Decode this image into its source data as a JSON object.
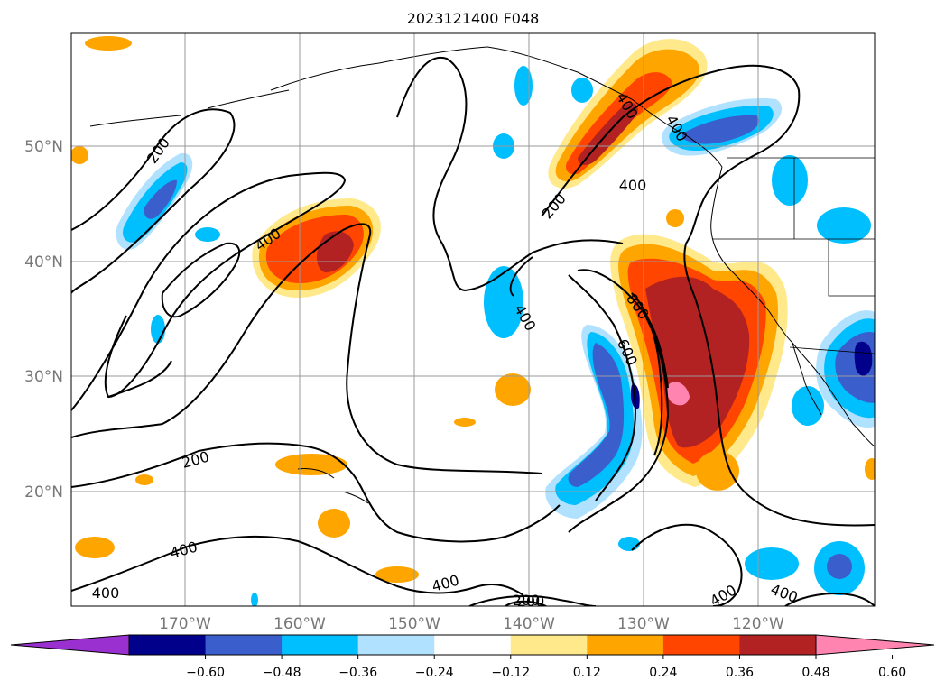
{
  "title": "2023121400 F048",
  "lat_labels": [
    "50°N",
    "40°N",
    "30°N",
    "20°N"
  ],
  "lon_labels": [
    "170°W",
    "160°W",
    "150°W",
    "140°W",
    "130°W",
    "120°W"
  ],
  "contour_labels": [
    "200",
    "200",
    "200",
    "400",
    "400",
    "400",
    "400",
    "400",
    "400",
    "400",
    "400",
    "600",
    "800",
    "200",
    "200",
    "400",
    "400"
  ],
  "colorbar": {
    "colors": [
      "#9b30d0",
      "#00008b",
      "#3a5fcd",
      "#00bfff",
      "#b0e2ff",
      "#ffffff",
      "#ffe98a",
      "#ffa500",
      "#ff4500",
      "#b22222",
      "#ff85b0"
    ],
    "tick_labels": [
      "−0.60",
      "−0.48",
      "−0.36",
      "−0.24",
      "−0.12",
      "0.12",
      "0.24",
      "0.36",
      "0.48",
      "0.60"
    ]
  }
}
